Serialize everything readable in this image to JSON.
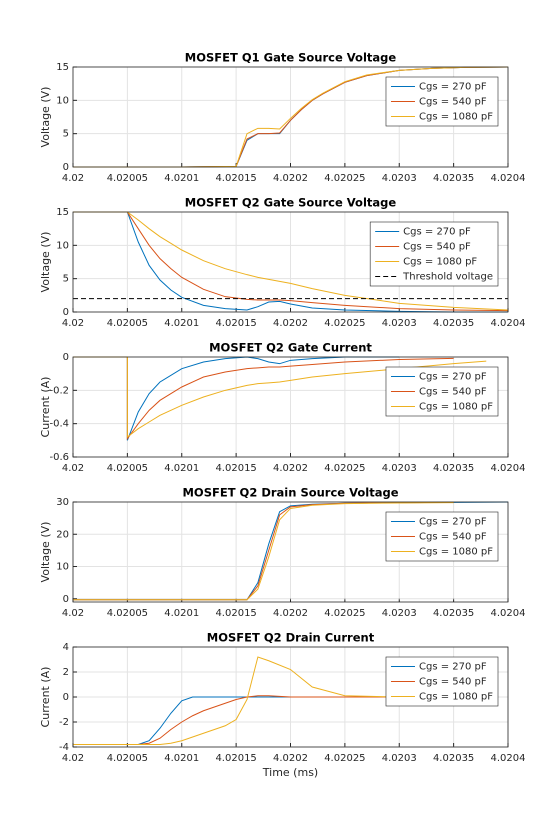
{
  "chart_data": [
    {
      "type": "line",
      "title": "MOSFET Q1 Gate Source Voltage",
      "ylabel": "Voltage (V)",
      "x": [
        4.02,
        4.0201,
        4.02015,
        4.02016,
        4.02017,
        4.02018,
        4.02019,
        4.0202,
        4.02021,
        4.02022,
        4.02023,
        4.02025,
        4.02027,
        4.0203,
        4.02033,
        4.02036,
        4.0204
      ],
      "series": [
        {
          "name": "Cgs = 270 pF",
          "color": "#0072bd",
          "values": [
            0,
            0,
            0.1,
            4,
            5,
            5,
            5,
            7,
            8.6,
            10,
            11,
            12.7,
            13.7,
            14.5,
            14.8,
            14.95,
            15
          ]
        },
        {
          "name": "Cgs = 540 pF",
          "color": "#d95319",
          "values": [
            0,
            0,
            0.1,
            4.2,
            5,
            5,
            5.1,
            7,
            8.6,
            10,
            11,
            12.7,
            13.7,
            14.5,
            14.8,
            14.95,
            15
          ]
        },
        {
          "name": "Cgs = 1080 pF",
          "color": "#edb120",
          "values": [
            0,
            0,
            0.1,
            5,
            5.8,
            5.8,
            5.7,
            7.3,
            8.8,
            10.1,
            11.1,
            12.8,
            13.8,
            14.5,
            14.8,
            14.95,
            15
          ]
        }
      ],
      "xlim": [
        4.02,
        4.0204
      ],
      "xticks": [
        4.02,
        4.02005,
        4.0201,
        4.02015,
        4.0202,
        4.02025,
        4.0203,
        4.02035,
        4.0204
      ],
      "ylim": [
        0,
        15
      ],
      "yticks": [
        0,
        5,
        10,
        15
      ],
      "grid": true,
      "legend": "northeast"
    },
    {
      "type": "line",
      "title": "MOSFET Q2 Gate Source Voltage",
      "ylabel": "Voltage (V)",
      "x": [
        4.02,
        4.02005,
        4.02006,
        4.02007,
        4.02008,
        4.02009,
        4.0201,
        4.02012,
        4.02014,
        4.02016,
        4.02017,
        4.02018,
        4.02019,
        4.0202,
        4.02022,
        4.02025,
        4.0203,
        4.02035,
        4.0204
      ],
      "series": [
        {
          "name": "Cgs = 270 pF",
          "color": "#0072bd",
          "values": [
            15,
            15,
            10.5,
            7,
            4.8,
            3.3,
            2.2,
            1,
            0.5,
            0.3,
            0.8,
            1.5,
            1.6,
            1.2,
            0.6,
            0.3,
            0.1,
            0,
            0
          ]
        },
        {
          "name": "Cgs = 540 pF",
          "color": "#d95319",
          "values": [
            15,
            15,
            12.5,
            10,
            8,
            6.5,
            5.2,
            3.4,
            2.3,
            1.9,
            1.8,
            1.8,
            1.8,
            1.7,
            1.4,
            1,
            0.5,
            0.3,
            0.2
          ]
        },
        {
          "name": "Cgs = 1080 pF",
          "color": "#edb120",
          "values": [
            15,
            15,
            13.8,
            12.5,
            11.3,
            10.3,
            9.3,
            7.7,
            6.5,
            5.6,
            5.2,
            4.9,
            4.6,
            4.3,
            3.5,
            2.5,
            1.3,
            0.7,
            0.3
          ]
        },
        {
          "name": "Threshold voltage",
          "color": "#000000",
          "dash": true,
          "values": [
            2,
            2,
            2,
            2,
            2,
            2,
            2,
            2,
            2,
            2,
            2,
            2,
            2,
            2,
            2,
            2,
            2,
            2,
            2
          ]
        }
      ],
      "xlim": [
        4.02,
        4.0204
      ],
      "xticks": [
        4.02,
        4.02005,
        4.0201,
        4.02015,
        4.0202,
        4.02025,
        4.0203,
        4.02035,
        4.0204
      ],
      "ylim": [
        0,
        15
      ],
      "yticks": [
        0,
        5,
        10,
        15
      ],
      "grid": true,
      "legend": "northeast"
    },
    {
      "type": "line",
      "title": "MOSFET Q2 Gate Current",
      "ylabel": "Current (A)",
      "x": [
        4.02,
        4.02005,
        4.02005,
        4.02006,
        4.02007,
        4.02008,
        4.0201,
        4.02012,
        4.02014,
        4.02016,
        4.02017,
        4.02018,
        4.02019,
        4.0202,
        4.02022,
        4.02025,
        4.0203,
        4.02035,
        4.02038,
        4.0204
      ],
      "series": [
        {
          "name": "Cgs = 270 pF",
          "color": "#0072bd",
          "values": [
            0,
            0,
            -0.5,
            -0.33,
            -0.22,
            -0.15,
            -0.07,
            -0.03,
            -0.01,
            0,
            -0.01,
            -0.03,
            -0.04,
            -0.02,
            -0.01,
            0,
            0,
            null,
            null,
            null
          ]
        },
        {
          "name": "Cgs = 540 pF",
          "color": "#d95319",
          "values": [
            0,
            0,
            -0.49,
            -0.4,
            -0.32,
            -0.26,
            -0.18,
            -0.12,
            -0.09,
            -0.07,
            -0.065,
            -0.06,
            -0.06,
            -0.055,
            -0.045,
            -0.03,
            -0.015,
            -0.008,
            null,
            null
          ]
        },
        {
          "name": "Cgs = 1080 pF",
          "color": "#edb120",
          "values": [
            0,
            0,
            -0.48,
            -0.43,
            -0.39,
            -0.35,
            -0.29,
            -0.24,
            -0.2,
            -0.17,
            -0.16,
            -0.155,
            -0.15,
            -0.14,
            -0.12,
            -0.1,
            -0.07,
            -0.04,
            -0.025,
            null
          ]
        }
      ],
      "xlim": [
        4.02,
        4.0204
      ],
      "xticks": [
        4.02,
        4.02005,
        4.0201,
        4.02015,
        4.0202,
        4.02025,
        4.0203,
        4.02035,
        4.0204
      ],
      "ylim": [
        -0.6,
        0
      ],
      "yticks": [
        -0.6,
        -0.4,
        -0.2,
        0
      ],
      "grid": true,
      "legend": "northeast"
    },
    {
      "type": "line",
      "title": "MOSFET Q2 Drain Source Voltage",
      "ylabel": "Voltage (V)",
      "x": [
        4.02,
        4.0201,
        4.02016,
        4.02017,
        4.02018,
        4.02019,
        4.0202,
        4.02022,
        4.02025,
        4.0203,
        4.02035,
        4.0204
      ],
      "series": [
        {
          "name": "Cgs = 270 pF",
          "color": "#0072bd",
          "values": [
            -0.3,
            -0.3,
            -0.3,
            5,
            17,
            27,
            28.8,
            29.3,
            29.6,
            29.8,
            29.9,
            30
          ]
        },
        {
          "name": "Cgs = 540 pF",
          "color": "#d95319",
          "values": [
            -0.3,
            -0.3,
            -0.3,
            4,
            15,
            26,
            28.5,
            29.2,
            29.6,
            29.8,
            29.9,
            null
          ]
        },
        {
          "name": "Cgs = 1080 pF",
          "color": "#edb120",
          "values": [
            -0.3,
            -0.3,
            -0.3,
            3,
            13,
            24.5,
            28,
            29,
            29.5,
            29.7,
            29.8,
            null
          ]
        }
      ],
      "xlim": [
        4.02,
        4.0204
      ],
      "xticks": [
        4.02,
        4.02005,
        4.0201,
        4.02015,
        4.0202,
        4.02025,
        4.0203,
        4.02035,
        4.0204
      ],
      "ylim": [
        -1,
        30
      ],
      "yticks": [
        0,
        10,
        20,
        30
      ],
      "grid": true,
      "legend": "northeast"
    },
    {
      "type": "line",
      "title": "MOSFET Q2 Drain Current",
      "ylabel": "Current (A)",
      "xlabel": "Time (ms)",
      "x": [
        4.02,
        4.02006,
        4.02007,
        4.02008,
        4.02009,
        4.0201,
        4.02011,
        4.02012,
        4.02014,
        4.02015,
        4.02016,
        4.02017,
        4.02018,
        4.0202,
        4.02022,
        4.02025,
        4.0203,
        4.02035,
        4.0204
      ],
      "series": [
        {
          "name": "Cgs = 270 pF",
          "color": "#0072bd",
          "values": [
            -3.8,
            -3.8,
            -3.5,
            -2.5,
            -1.3,
            -0.3,
            0,
            0,
            0,
            0,
            0,
            0,
            0,
            0,
            0,
            0,
            0,
            0,
            null
          ]
        },
        {
          "name": "Cgs = 540 pF",
          "color": "#d95319",
          "values": [
            -3.8,
            -3.8,
            -3.7,
            -3.3,
            -2.6,
            -2,
            -1.5,
            -1.1,
            -0.5,
            -0.2,
            0,
            0.1,
            0.1,
            0,
            0,
            0,
            0,
            0,
            null
          ]
        },
        {
          "name": "Cgs = 1080 pF",
          "color": "#edb120",
          "values": [
            -3.8,
            -3.8,
            -3.8,
            -3.8,
            -3.7,
            -3.5,
            -3.2,
            -2.9,
            -2.3,
            -1.8,
            -0.2,
            3.2,
            2.9,
            2.2,
            0.8,
            0.1,
            0,
            0,
            null
          ]
        }
      ],
      "xlim": [
        4.02,
        4.0204
      ],
      "xticks": [
        4.02,
        4.02005,
        4.0201,
        4.02015,
        4.0202,
        4.02025,
        4.0203,
        4.02035,
        4.0204
      ],
      "ylim": [
        -4,
        4
      ],
      "yticks": [
        -4,
        -2,
        0,
        2,
        4
      ],
      "grid": true,
      "legend": "northeast"
    }
  ]
}
